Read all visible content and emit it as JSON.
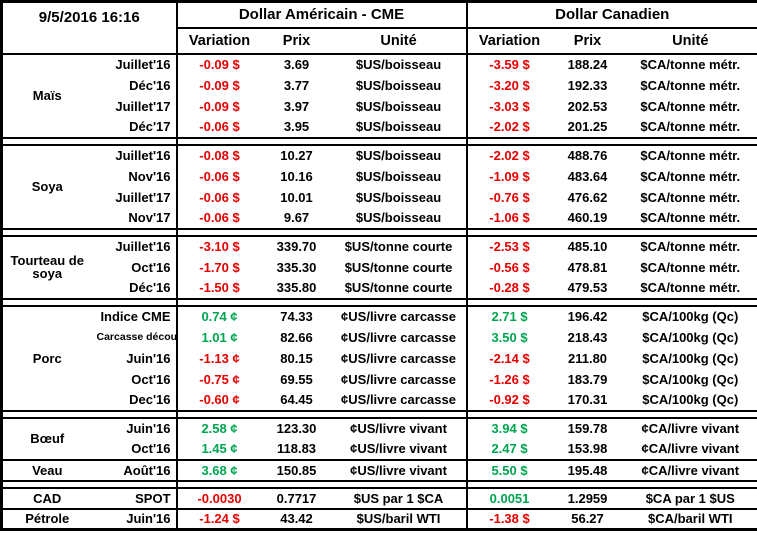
{
  "meta": {
    "timestamp": "9/5/2016 16:16"
  },
  "header": {
    "us_title": "Dollar Américain - CME",
    "ca_title": "Dollar Canadien",
    "col_variation": "Variation",
    "col_prix": "Prix",
    "col_unite": "Unité"
  },
  "colors": {
    "negative": "#e60000",
    "positive": "#00a550"
  },
  "groups": [
    {
      "category": "Maïs",
      "gap_after": true,
      "rows": [
        {
          "month": "Juillet'16",
          "us": {
            "variation": "-0.09 $",
            "prix": "3.69",
            "unite": "$US/boisseau"
          },
          "ca": {
            "variation": "-3.59 $",
            "prix": "188.24",
            "unite": "$CA/tonne métr."
          }
        },
        {
          "month": "Déc'16",
          "us": {
            "variation": "-0.09 $",
            "prix": "3.77",
            "unite": "$US/boisseau"
          },
          "ca": {
            "variation": "-3.20 $",
            "prix": "192.33",
            "unite": "$CA/tonne métr."
          }
        },
        {
          "month": "Juillet'17",
          "us": {
            "variation": "-0.09 $",
            "prix": "3.97",
            "unite": "$US/boisseau"
          },
          "ca": {
            "variation": "-3.03 $",
            "prix": "202.53",
            "unite": "$CA/tonne métr."
          }
        },
        {
          "month": "Déc'17",
          "us": {
            "variation": "-0.06 $",
            "prix": "3.95",
            "unite": "$US/boisseau"
          },
          "ca": {
            "variation": "-2.02 $",
            "prix": "201.25",
            "unite": "$CA/tonne métr."
          }
        }
      ]
    },
    {
      "category": "Soya",
      "gap_after": true,
      "rows": [
        {
          "month": "Juillet'16",
          "us": {
            "variation": "-0.08 $",
            "prix": "10.27",
            "unite": "$US/boisseau"
          },
          "ca": {
            "variation": "-2.02 $",
            "prix": "488.76",
            "unite": "$CA/tonne métr."
          }
        },
        {
          "month": "Nov'16",
          "us": {
            "variation": "-0.06 $",
            "prix": "10.16",
            "unite": "$US/boisseau"
          },
          "ca": {
            "variation": "-1.09 $",
            "prix": "483.64",
            "unite": "$CA/tonne métr."
          }
        },
        {
          "month": "Juillet'17",
          "us": {
            "variation": "-0.06 $",
            "prix": "10.01",
            "unite": "$US/boisseau"
          },
          "ca": {
            "variation": "-0.76 $",
            "prix": "476.62",
            "unite": "$CA/tonne métr."
          }
        },
        {
          "month": "Nov'17",
          "us": {
            "variation": "-0.06 $",
            "prix": "9.67",
            "unite": "$US/boisseau"
          },
          "ca": {
            "variation": "-1.06 $",
            "prix": "460.19",
            "unite": "$CA/tonne métr."
          }
        }
      ]
    },
    {
      "category": "Tourteau de soya",
      "gap_after": true,
      "rows": [
        {
          "month": "Juillet'16",
          "us": {
            "variation": "-3.10 $",
            "prix": "339.70",
            "unite": "$US/tonne courte"
          },
          "ca": {
            "variation": "-2.53 $",
            "prix": "485.10",
            "unite": "$CA/tonne métr."
          }
        },
        {
          "month": "Oct'16",
          "us": {
            "variation": "-1.70 $",
            "prix": "335.30",
            "unite": "$US/tonne courte"
          },
          "ca": {
            "variation": "-0.56 $",
            "prix": "478.81",
            "unite": "$CA/tonne métr."
          }
        },
        {
          "month": "Déc'16",
          "us": {
            "variation": "-1.50 $",
            "prix": "335.80",
            "unite": "$US/tonne courte"
          },
          "ca": {
            "variation": "-0.28 $",
            "prix": "479.53",
            "unite": "$CA/tonne métr."
          }
        }
      ]
    },
    {
      "category": "Porc",
      "gap_after": true,
      "rows": [
        {
          "month": "Indice CME",
          "us": {
            "variation": "0.74 ¢",
            "prix": "74.33",
            "unite": "¢US/livre carcasse"
          },
          "ca": {
            "variation": "2.71 $",
            "prix": "196.42",
            "unite": "$CA/100kg (Qc)"
          }
        },
        {
          "month": "Carcasse découpée",
          "us": {
            "variation": "1.01 ¢",
            "prix": "82.66",
            "unite": "¢US/livre carcasse"
          },
          "ca": {
            "variation": "3.50 $",
            "prix": "218.43",
            "unite": "$CA/100kg (Qc)"
          }
        },
        {
          "month": "Juin'16",
          "us": {
            "variation": "-1.13 ¢",
            "prix": "80.15",
            "unite": "¢US/livre carcasse"
          },
          "ca": {
            "variation": "-2.14 $",
            "prix": "211.80",
            "unite": "$CA/100kg (Qc)"
          }
        },
        {
          "month": "Oct'16",
          "us": {
            "variation": "-0.75 ¢",
            "prix": "69.55",
            "unite": "¢US/livre carcasse"
          },
          "ca": {
            "variation": "-1.26 $",
            "prix": "183.79",
            "unite": "$CA/100kg (Qc)"
          }
        },
        {
          "month": "Dec'16",
          "us": {
            "variation": "-0.60 ¢",
            "prix": "64.45",
            "unite": "¢US/livre carcasse"
          },
          "ca": {
            "variation": "-0.92 $",
            "prix": "170.31",
            "unite": "$CA/100kg (Qc)"
          }
        }
      ]
    },
    {
      "category": "Bœuf",
      "gap_after": false,
      "rows": [
        {
          "month": "Juin'16",
          "us": {
            "variation": "2.58 ¢",
            "prix": "123.30",
            "unite": "¢US/livre vivant"
          },
          "ca": {
            "variation": "3.94 $",
            "prix": "159.78",
            "unite": "¢CA/livre vivant"
          }
        },
        {
          "month": "Oct'16",
          "us": {
            "variation": "1.45 ¢",
            "prix": "118.83",
            "unite": "¢US/livre vivant"
          },
          "ca": {
            "variation": "2.47 $",
            "prix": "153.98",
            "unite": "¢CA/livre vivant"
          }
        }
      ]
    },
    {
      "category": "Veau",
      "gap_after": true,
      "rows": [
        {
          "month": "Août'16",
          "us": {
            "variation": "3.68 ¢",
            "prix": "150.85",
            "unite": "¢US/livre vivant"
          },
          "ca": {
            "variation": "5.50 $",
            "prix": "195.48",
            "unite": "¢CA/livre vivant"
          }
        }
      ]
    },
    {
      "category": "CAD",
      "gap_after": false,
      "rows": [
        {
          "month": "SPOT",
          "us": {
            "variation": "-0.0030",
            "prix": "0.7717",
            "unite": "$US par 1 $CA"
          },
          "ca": {
            "variation": "0.0051",
            "prix": "1.2959",
            "unite": "$CA par 1 $US"
          }
        }
      ]
    },
    {
      "category": "Pétrole",
      "gap_after": false,
      "rows": [
        {
          "month": "Juin'16",
          "us": {
            "variation": "-1.24 $",
            "prix": "43.42",
            "unite": "$US/baril WTI"
          },
          "ca": {
            "variation": "-1.38 $",
            "prix": "56.27",
            "unite": "$CA/baril WTI"
          }
        }
      ]
    }
  ]
}
